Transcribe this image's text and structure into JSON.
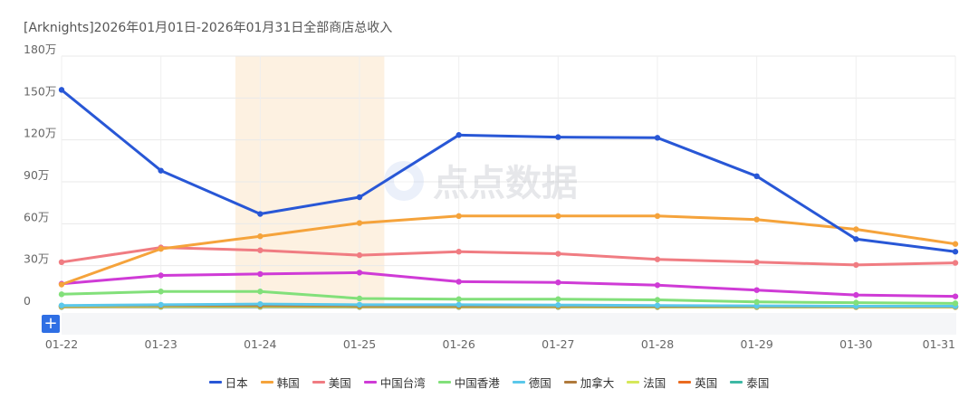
{
  "title": "[Arknights]2026年01月01日-2026年01月31日全部商店总收入",
  "watermark": "点点数据",
  "toolbar": {
    "expand_label": "+"
  },
  "chart_data": {
    "type": "line",
    "x": [
      "01-22",
      "01-23",
      "01-24",
      "01-25",
      "01-26",
      "01-27",
      "01-28",
      "01-29",
      "01-30",
      "01-31"
    ],
    "yticks": [
      0,
      300000,
      600000,
      900000,
      1200000,
      1500000,
      1800000
    ],
    "ytick_labels": [
      "0",
      "30万",
      "60万",
      "90万",
      "120万",
      "150万",
      "180万"
    ],
    "ylim": [
      0,
      1800000
    ],
    "grid": true,
    "legend_position": "bottom",
    "highlight_range": [
      "01-24",
      "01-25"
    ],
    "series": [
      {
        "name": "日本",
        "color": "#2857d6",
        "values": [
          1558000,
          980000,
          670000,
          790000,
          1235000,
          1220000,
          1215000,
          940000,
          490000,
          400000
        ]
      },
      {
        "name": "韩国",
        "color": "#f5a33b",
        "values": [
          165000,
          420000,
          510000,
          605000,
          655000,
          655000,
          655000,
          630000,
          560000,
          455000
        ]
      },
      {
        "name": "美国",
        "color": "#f07c82",
        "values": [
          325000,
          430000,
          410000,
          375000,
          400000,
          385000,
          345000,
          325000,
          305000,
          320000
        ]
      },
      {
        "name": "中国台湾",
        "color": "#cf3bd6",
        "values": [
          170000,
          230000,
          240000,
          250000,
          185000,
          180000,
          160000,
          125000,
          90000,
          80000
        ]
      },
      {
        "name": "中国香港",
        "color": "#82e07a",
        "values": [
          95000,
          115000,
          115000,
          65000,
          60000,
          60000,
          55000,
          40000,
          35000,
          30000
        ]
      },
      {
        "name": "德国",
        "color": "#5bc8ea",
        "values": [
          15000,
          20000,
          25000,
          20000,
          20000,
          18000,
          15000,
          12000,
          10000,
          10000
        ]
      },
      {
        "name": "加拿大",
        "color": "#b07a3c",
        "values": [
          12000,
          15000,
          15000,
          12000,
          12000,
          12000,
          10000,
          10000,
          8000,
          8000
        ]
      },
      {
        "name": "法国",
        "color": "#d6e85a",
        "values": [
          8000,
          10000,
          10000,
          8000,
          8000,
          8000,
          6000,
          6000,
          5000,
          5000
        ]
      },
      {
        "name": "英国",
        "color": "#ea6b1f",
        "values": [
          6000,
          8000,
          8000,
          6000,
          6000,
          6000,
          5000,
          5000,
          4000,
          4000
        ]
      },
      {
        "name": "泰国",
        "color": "#3db8a4",
        "values": [
          4000,
          5000,
          5000,
          4000,
          4000,
          4000,
          3000,
          3000,
          3000,
          3000
        ]
      }
    ]
  }
}
